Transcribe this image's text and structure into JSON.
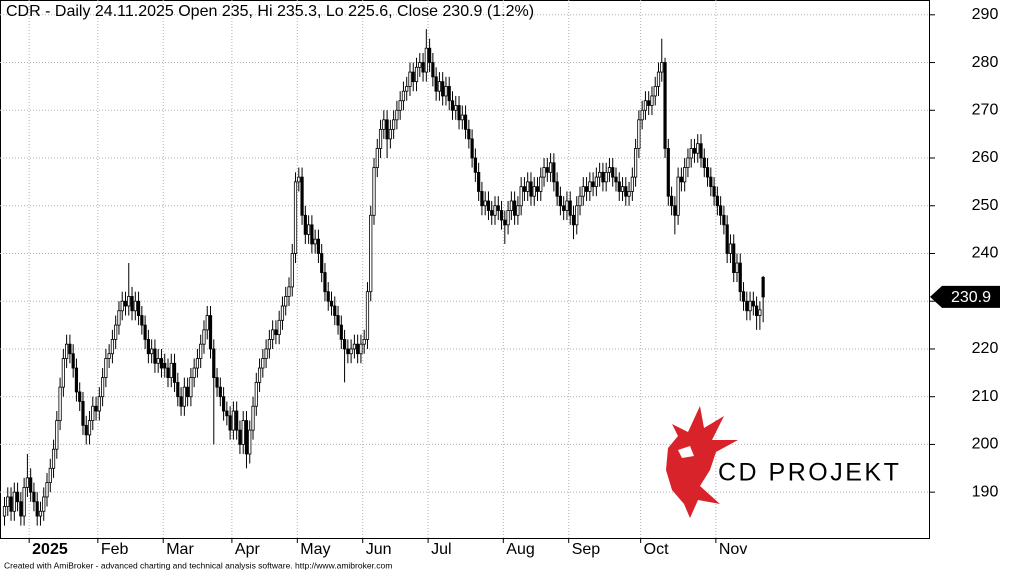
{
  "chart_data": {
    "type": "candlestick",
    "title": "CDR - Daily 24.11.2025 Open 235, Hi 235.3, Lo 225.6, Close 230.9 (1.2%)",
    "footer": "Created with AmiBroker - advanced charting and technical analysis software. http://www.amibroker.com",
    "logo_text": "CD PROJEKT",
    "categories": [
      null,
      null,
      null,
      null,
      null,
      null,
      null,
      null,
      "2025",
      null,
      null,
      null,
      null,
      null,
      null,
      null,
      null,
      null,
      null,
      null,
      null,
      null,
      null,
      null,
      null,
      null,
      null,
      null,
      null,
      "Feb",
      null,
      null,
      null,
      null,
      null,
      null,
      null,
      null,
      null,
      null,
      null,
      null,
      null,
      null,
      null,
      null,
      null,
      null,
      null,
      "Mar",
      null,
      null,
      null,
      null,
      null,
      null,
      null,
      null,
      null,
      null,
      null,
      null,
      null,
      null,
      null,
      null,
      null,
      null,
      null,
      null,
      "Apr",
      null,
      null,
      null,
      null,
      null,
      null,
      null,
      null,
      null,
      null,
      null,
      null,
      null,
      null,
      null,
      null,
      null,
      null,
      null,
      "May",
      null,
      null,
      null,
      null,
      null,
      null,
      null,
      null,
      null,
      null,
      null,
      null,
      null,
      null,
      null,
      null,
      null,
      null,
      null,
      "Jun",
      null,
      null,
      null,
      null,
      null,
      null,
      null,
      null,
      null,
      null,
      null,
      null,
      null,
      null,
      null,
      null,
      null,
      null,
      null,
      "Jul",
      null,
      null,
      null,
      null,
      null,
      null,
      null,
      null,
      null,
      null,
      null,
      null,
      null,
      null,
      null,
      null,
      null,
      null,
      null,
      null,
      null,
      null,
      "Aug",
      null,
      null,
      null,
      null,
      null,
      null,
      null,
      null,
      null,
      null,
      null,
      null,
      null,
      null,
      null,
      null,
      null,
      null,
      null,
      "Sep",
      null,
      null,
      null,
      null,
      null,
      null,
      null,
      null,
      null,
      null,
      null,
      null,
      null,
      null,
      null,
      null,
      null,
      null,
      null,
      null,
      null,
      "Oct",
      null,
      null,
      null,
      null,
      null,
      null,
      null,
      null,
      null,
      null,
      null,
      null,
      null,
      null,
      null,
      null,
      null,
      null,
      null,
      null,
      null,
      null,
      "Nov",
      null,
      null,
      null,
      null,
      null,
      null,
      null,
      null,
      null,
      null,
      null,
      null,
      null,
      null
    ],
    "open": [
      185,
      187,
      189,
      186,
      190,
      188,
      185,
      191,
      193,
      190,
      188,
      185,
      186,
      189,
      192,
      195,
      199,
      205,
      212,
      218,
      221,
      219,
      216,
      211,
      209,
      204,
      202,
      205,
      208,
      207,
      210,
      214,
      218,
      219,
      222,
      225,
      228,
      230,
      229,
      231,
      228,
      230,
      227,
      225,
      222,
      219,
      220,
      217,
      218,
      217,
      216,
      214,
      217,
      213,
      210,
      208,
      212,
      210,
      214,
      216,
      218,
      221,
      224,
      227,
      220,
      214,
      212,
      210,
      207,
      206,
      203,
      207,
      203,
      200,
      205,
      198,
      203,
      208,
      213,
      216,
      218,
      220,
      222,
      224,
      223,
      226,
      229,
      231,
      233,
      240,
      255,
      256,
      248,
      244,
      246,
      242,
      243,
      240,
      236,
      232,
      230,
      229,
      227,
      225,
      222,
      220,
      219,
      220,
      221,
      219,
      221,
      222,
      232,
      248,
      258,
      262,
      266,
      268,
      264,
      266,
      268,
      270,
      272,
      274,
      275,
      278,
      276,
      279,
      280,
      278,
      283,
      280,
      277,
      274,
      276,
      273,
      275,
      272,
      270,
      271,
      268,
      269,
      266,
      264,
      260,
      257,
      253,
      250,
      251,
      249,
      248,
      250,
      249,
      247,
      246,
      249,
      251,
      248,
      250,
      254,
      253,
      255,
      252,
      254,
      253,
      256,
      258,
      257,
      259,
      255,
      252,
      250,
      249,
      251,
      248,
      246,
      250,
      252,
      254,
      253,
      255,
      254,
      256,
      257,
      255,
      257,
      258,
      256,
      255,
      253,
      254,
      252,
      253,
      256,
      262,
      268,
      270,
      272,
      271,
      273,
      275,
      278,
      280,
      262,
      252,
      250,
      248,
      256,
      255,
      258,
      260,
      262,
      261,
      263,
      260,
      258,
      256,
      254,
      252,
      250,
      248,
      246,
      240,
      242,
      236,
      238,
      232,
      230,
      228,
      230,
      229,
      227,
      235
    ],
    "high": [
      189,
      191,
      191,
      192,
      192,
      190,
      193,
      198,
      195,
      192,
      190,
      188,
      191,
      194,
      197,
      201,
      207,
      214,
      220,
      223,
      223,
      221,
      218,
      213,
      211,
      206,
      207,
      210,
      210,
      212,
      216,
      220,
      221,
      224,
      227,
      230,
      232,
      232,
      238,
      233,
      232,
      232,
      229,
      227,
      224,
      222,
      222,
      220,
      220,
      219,
      218,
      219,
      219,
      215,
      212,
      214,
      214,
      216,
      218,
      220,
      223,
      226,
      229,
      229,
      222,
      216,
      214,
      212,
      209,
      208,
      209,
      209,
      205,
      207,
      207,
      205,
      210,
      215,
      218,
      220,
      222,
      224,
      226,
      226,
      228,
      231,
      233,
      235,
      242,
      257,
      258,
      258,
      250,
      248,
      248,
      245,
      245,
      242,
      238,
      234,
      232,
      231,
      229,
      227,
      224,
      222,
      222,
      223,
      223,
      223,
      224,
      234,
      250,
      260,
      264,
      268,
      270,
      270,
      268,
      270,
      272,
      274,
      276,
      277,
      280,
      280,
      281,
      282,
      282,
      287,
      285,
      282,
      279,
      278,
      278,
      277,
      277,
      274,
      273,
      273,
      271,
      271,
      268,
      266,
      262,
      259,
      255,
      253,
      253,
      251,
      252,
      252,
      251,
      249,
      251,
      253,
      253,
      252,
      256,
      256,
      257,
      257,
      256,
      256,
      258,
      260,
      260,
      261,
      261,
      257,
      254,
      252,
      253,
      253,
      250,
      252,
      254,
      256,
      256,
      257,
      257,
      258,
      259,
      259,
      259,
      260,
      260,
      258,
      257,
      256,
      256,
      255,
      258,
      264,
      270,
      272,
      274,
      274,
      275,
      277,
      280,
      285,
      281,
      264,
      254,
      252,
      258,
      258,
      260,
      262,
      264,
      264,
      265,
      265,
      262,
      260,
      258,
      256,
      254,
      252,
      250,
      248,
      244,
      244,
      240,
      240,
      234,
      232,
      232,
      232,
      231,
      230,
      235.3
    ],
    "low": [
      183,
      185,
      184,
      184,
      186,
      183,
      183,
      189,
      188,
      186,
      183,
      183,
      184,
      187,
      190,
      193,
      197,
      203,
      210,
      216,
      217,
      214,
      209,
      207,
      202,
      200,
      200,
      203,
      205,
      205,
      208,
      212,
      216,
      217,
      220,
      223,
      226,
      227,
      227,
      226,
      226,
      225,
      223,
      220,
      217,
      217,
      215,
      215,
      214,
      214,
      212,
      212,
      211,
      208,
      206,
      206,
      208,
      208,
      212,
      214,
      216,
      219,
      222,
      218,
      200,
      210,
      208,
      205,
      204,
      201,
      201,
      201,
      198,
      198,
      195,
      196,
      201,
      206,
      211,
      214,
      216,
      218,
      220,
      221,
      221,
      224,
      227,
      229,
      231,
      238,
      253,
      246,
      242,
      242,
      240,
      240,
      238,
      234,
      230,
      228,
      227,
      225,
      223,
      220,
      213,
      217,
      217,
      218,
      217,
      217,
      219,
      220,
      230,
      246,
      256,
      260,
      264,
      260,
      262,
      264,
      266,
      268,
      270,
      272,
      273,
      274,
      274,
      277,
      276,
      276,
      278,
      275,
      272,
      272,
      271,
      271,
      270,
      268,
      268,
      266,
      266,
      264,
      262,
      258,
      255,
      251,
      248,
      248,
      247,
      246,
      246,
      247,
      245,
      242,
      244,
      247,
      246,
      246,
      248,
      251,
      251,
      250,
      250,
      251,
      251,
      254,
      255,
      255,
      253,
      250,
      248,
      247,
      247,
      246,
      243,
      244,
      248,
      250,
      251,
      251,
      252,
      252,
      254,
      253,
      253,
      255,
      254,
      253,
      251,
      251,
      250,
      250,
      251,
      254,
      260,
      266,
      268,
      269,
      269,
      271,
      273,
      276,
      260,
      250,
      248,
      244,
      246,
      253,
      253,
      256,
      258,
      259,
      259,
      258,
      256,
      254,
      252,
      250,
      248,
      246,
      244,
      238,
      238,
      234,
      234,
      230,
      228,
      226,
      226,
      227,
      224,
      224,
      225.6
    ],
    "close": [
      187,
      189,
      186,
      190,
      188,
      185,
      191,
      193,
      190,
      188,
      185,
      186,
      189,
      192,
      195,
      199,
      205,
      212,
      218,
      221,
      219,
      216,
      211,
      209,
      204,
      202,
      205,
      208,
      207,
      210,
      214,
      218,
      219,
      222,
      225,
      228,
      230,
      229,
      231,
      228,
      230,
      227,
      225,
      222,
      219,
      220,
      217,
      218,
      216,
      216,
      214,
      217,
      213,
      210,
      208,
      212,
      210,
      214,
      216,
      218,
      221,
      224,
      227,
      220,
      214,
      212,
      210,
      207,
      206,
      203,
      207,
      203,
      200,
      205,
      198,
      203,
      208,
      213,
      216,
      218,
      220,
      222,
      224,
      223,
      226,
      229,
      231,
      233,
      240,
      255,
      256,
      248,
      244,
      246,
      242,
      243,
      240,
      236,
      232,
      230,
      229,
      227,
      225,
      222,
      220,
      219,
      220,
      221,
      219,
      221,
      222,
      232,
      248,
      258,
      262,
      266,
      268,
      264,
      266,
      268,
      270,
      272,
      274,
      275,
      278,
      276,
      279,
      280,
      278,
      283,
      280,
      277,
      274,
      276,
      273,
      275,
      272,
      270,
      271,
      268,
      269,
      266,
      264,
      260,
      257,
      253,
      250,
      251,
      249,
      248,
      250,
      249,
      247,
      246,
      249,
      251,
      248,
      250,
      254,
      253,
      255,
      252,
      254,
      253,
      256,
      258,
      257,
      259,
      255,
      252,
      250,
      249,
      251,
      248,
      246,
      250,
      252,
      254,
      253,
      255,
      254,
      256,
      257,
      255,
      257,
      258,
      256,
      255,
      253,
      254,
      252,
      253,
      256,
      262,
      268,
      270,
      272,
      271,
      273,
      275,
      278,
      280,
      262,
      252,
      250,
      248,
      256,
      255,
      258,
      260,
      262,
      261,
      263,
      260,
      258,
      256,
      254,
      252,
      250,
      248,
      246,
      240,
      242,
      236,
      238,
      232,
      230,
      228,
      230,
      229,
      227,
      228.2,
      230.9
    ],
    "up_color": "#ffffff",
    "down_color": "#000000",
    "ylim": [
      180.4,
      293.1
    ],
    "yticks": [
      190,
      200,
      210,
      220,
      230,
      240,
      250,
      260,
      270,
      280,
      290
    ],
    "grid": true
  }
}
